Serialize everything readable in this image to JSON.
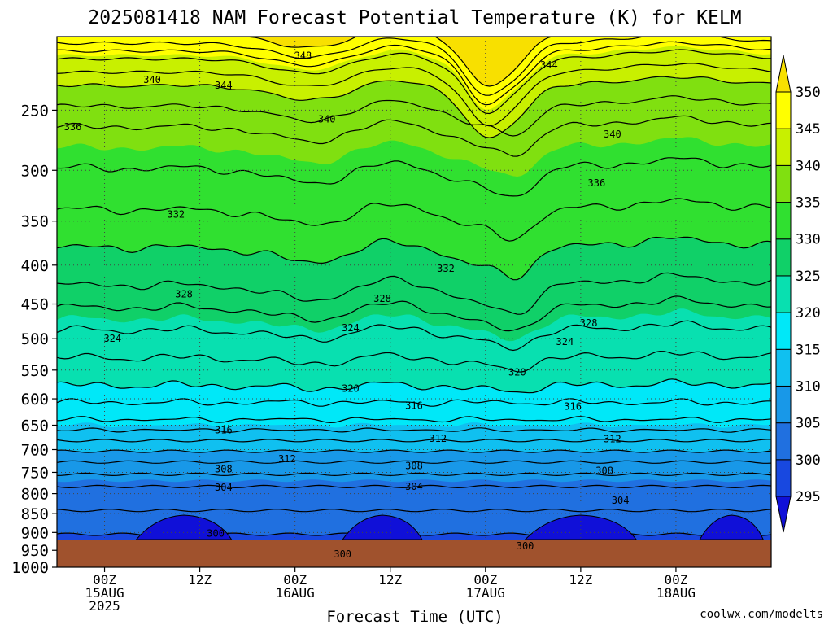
{
  "title": "2025081418 NAM Forecast Potential Temperature (K) for KELM",
  "xlabel": "Forecast Time (UTC)",
  "credit": "coolwx.com/modelts",
  "colors": {
    "ground": "#a0522d",
    "credit": "#cc2222"
  },
  "chart_data": {
    "type": "heatmap",
    "title": "2025081418 NAM Forecast Potential Temperature (K) for KELM",
    "xlabel": "Forecast Time (UTC)",
    "ylabel": "",
    "y_axis": {
      "scale": "log",
      "reversed": true,
      "ticks": [
        250,
        300,
        350,
        400,
        450,
        500,
        550,
        600,
        650,
        700,
        750,
        800,
        850,
        900,
        950,
        1000
      ],
      "range": [
        200,
        1000
      ]
    },
    "x_axis": {
      "range_hours": [
        -6,
        84
      ],
      "ticks": [
        {
          "hour": 0,
          "lines": [
            "00Z",
            "15AUG",
            "2025"
          ]
        },
        {
          "hour": 12,
          "lines": [
            "12Z"
          ]
        },
        {
          "hour": 24,
          "lines": [
            "00Z",
            "16AUG"
          ]
        },
        {
          "hour": 36,
          "lines": [
            "12Z"
          ]
        },
        {
          "hour": 48,
          "lines": [
            "00Z",
            "17AUG"
          ]
        },
        {
          "hour": 60,
          "lines": [
            "12Z"
          ]
        },
        {
          "hour": 72,
          "lines": [
            "00Z",
            "18AUG"
          ]
        }
      ]
    },
    "grid": true,
    "colorbar": {
      "placement": "right",
      "levels": [
        295,
        300,
        305,
        310,
        315,
        320,
        325,
        330,
        335,
        340,
        345,
        350
      ],
      "colors": [
        "#1010d8",
        "#1848e0",
        "#2070e0",
        "#1898e8",
        "#10c0f0",
        "#00e8f8",
        "#08e0b0",
        "#10d068",
        "#30e030",
        "#80e010",
        "#c8f000",
        "#ffff00",
        "#f8e000"
      ]
    },
    "ground_pressure": 967,
    "contour_profile_hour_0": [
      {
        "value": 300,
        "pressure": 905
      },
      {
        "value": 304,
        "pressure": 783
      },
      {
        "value": 308,
        "pressure": 727
      },
      {
        "value": 312,
        "pressure": 681
      },
      {
        "value": 316,
        "pressure": 639
      },
      {
        "value": 320,
        "pressure": 576
      },
      {
        "value": 324,
        "pressure": 487
      },
      {
        "value": 328,
        "pressure": 425
      },
      {
        "value": 332,
        "pressure": 338
      },
      {
        "value": 336,
        "pressure": 263
      },
      {
        "value": 340,
        "pressure": 232
      },
      {
        "value": 344,
        "pressure": 214
      },
      {
        "value": 348,
        "pressure": 204
      }
    ],
    "contour_labels": [
      {
        "value": "348",
        "hour": 25,
        "pressure": 212
      },
      {
        "value": "344",
        "hour": 15,
        "pressure": 232
      },
      {
        "value": "344",
        "hour": 56,
        "pressure": 218
      },
      {
        "value": "340",
        "hour": 6,
        "pressure": 228
      },
      {
        "value": "340",
        "hour": 28,
        "pressure": 257
      },
      {
        "value": "340",
        "hour": 64,
        "pressure": 269
      },
      {
        "value": "336",
        "hour": -4,
        "pressure": 263
      },
      {
        "value": "336",
        "hour": 62,
        "pressure": 312
      },
      {
        "value": "332",
        "hour": 9,
        "pressure": 343
      },
      {
        "value": "332",
        "hour": 43,
        "pressure": 404
      },
      {
        "value": "328",
        "hour": 10,
        "pressure": 437
      },
      {
        "value": "328",
        "hour": 35,
        "pressure": 443
      },
      {
        "value": "328",
        "hour": 61,
        "pressure": 477
      },
      {
        "value": "324",
        "hour": 1,
        "pressure": 500
      },
      {
        "value": "324",
        "hour": 31,
        "pressure": 484
      },
      {
        "value": "324",
        "hour": 58,
        "pressure": 505
      },
      {
        "value": "320",
        "hour": 31,
        "pressure": 582
      },
      {
        "value": "320",
        "hour": 52,
        "pressure": 554
      },
      {
        "value": "316",
        "hour": 15,
        "pressure": 660
      },
      {
        "value": "316",
        "hour": 39,
        "pressure": 613
      },
      {
        "value": "316",
        "hour": 59,
        "pressure": 614
      },
      {
        "value": "312",
        "hour": 23,
        "pressure": 720
      },
      {
        "value": "312",
        "hour": 42,
        "pressure": 677
      },
      {
        "value": "312",
        "hour": 64,
        "pressure": 678
      },
      {
        "value": "308",
        "hour": 15,
        "pressure": 743
      },
      {
        "value": "308",
        "hour": 39,
        "pressure": 735
      },
      {
        "value": "308",
        "hour": 63,
        "pressure": 746
      },
      {
        "value": "304",
        "hour": 15,
        "pressure": 785
      },
      {
        "value": "304",
        "hour": 39,
        "pressure": 783
      },
      {
        "value": "304",
        "hour": 65,
        "pressure": 817
      },
      {
        "value": "300",
        "hour": 14,
        "pressure": 903
      },
      {
        "value": "300",
        "hour": 30,
        "pressure": 961
      },
      {
        "value": "300",
        "hour": 53,
        "pressure": 938
      }
    ]
  }
}
